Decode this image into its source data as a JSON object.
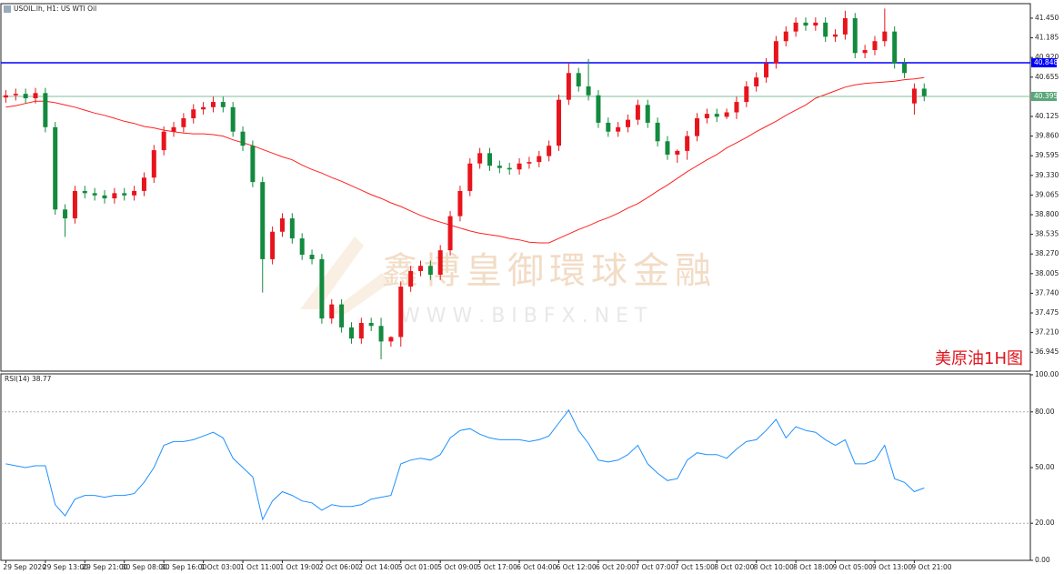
{
  "chart_data": [
    {
      "type": "candlestick",
      "title": "USOIL.lh, H1: US WTI Oil",
      "annotation": "美原油1H图",
      "watermark": "鑫博皇御環球金融",
      "watermark_url": "W W W . B I B F X . N E T",
      "up_color": "#e8141c",
      "down_color": "#138a3e",
      "xlim": [
        -1,
        207.5
      ],
      "ylim": [
        36.69,
        41.646
      ],
      "xticks": [
        {
          "value": 0,
          "label": "29 Sep 2020"
        },
        {
          "value": 8,
          "label": "29 Sep 13:00"
        },
        {
          "value": 16,
          "label": "29 Sep 21:00"
        },
        {
          "value": 24,
          "label": "30 Sep 08:00"
        },
        {
          "value": 32,
          "label": "30 Sep 16:00"
        },
        {
          "value": 40,
          "label": "1 Oct 03:00"
        },
        {
          "value": 48,
          "label": "1 Oct 11:00"
        },
        {
          "value": 56,
          "label": "1 Oct 19:00"
        },
        {
          "value": 64,
          "label": "2 Oct 06:00"
        },
        {
          "value": 72,
          "label": "2 Oct 14:00"
        },
        {
          "value": 80,
          "label": "5 Oct 01:00"
        },
        {
          "value": 88,
          "label": "5 Oct 09:00"
        },
        {
          "value": 96,
          "label": "5 Oct 17:00"
        },
        {
          "value": 104,
          "label": "6 Oct 04:00"
        },
        {
          "value": 112,
          "label": "6 Oct 12:00"
        },
        {
          "value": 120,
          "label": "6 Oct 20:00"
        },
        {
          "value": 128,
          "label": "7 Oct 07:00"
        },
        {
          "value": 136,
          "label": "7 Oct 15:00"
        },
        {
          "value": 144,
          "label": "8 Oct 02:00"
        },
        {
          "value": 152,
          "label": "8 Oct 10:00"
        },
        {
          "value": 160,
          "label": "8 Oct 18:00"
        },
        {
          "value": 168,
          "label": "9 Oct 05:00"
        },
        {
          "value": 176,
          "label": "9 Oct 13:00"
        },
        {
          "value": 184,
          "label": "9 Oct 21:00"
        }
      ],
      "yticks": [
        {
          "value": 41.45,
          "label": "41.450"
        },
        {
          "value": 41.185,
          "label": "41.185"
        },
        {
          "value": 40.92,
          "label": "40.920"
        },
        {
          "value": 40.655,
          "label": "40.655"
        },
        {
          "value": 40.125,
          "label": "40.125"
        },
        {
          "value": 39.86,
          "label": "39.860"
        },
        {
          "value": 39.595,
          "label": "39.595"
        },
        {
          "value": 39.33,
          "label": "39.330"
        },
        {
          "value": 39.065,
          "label": "39.065"
        },
        {
          "value": 38.8,
          "label": "38.800"
        },
        {
          "value": 38.535,
          "label": "38.535"
        },
        {
          "value": 38.27,
          "label": "38.270"
        },
        {
          "value": 38.005,
          "label": "38.005"
        },
        {
          "value": 37.74,
          "label": "37.740"
        },
        {
          "value": 37.475,
          "label": "37.475"
        },
        {
          "value": 37.21,
          "label": "37.210"
        },
        {
          "value": 36.945,
          "label": "36.945"
        }
      ],
      "hlines": [
        {
          "value": 40.848,
          "label": "40.848",
          "color": "#0000ff"
        },
        {
          "value": 40.395,
          "label": "40.395",
          "color": "#5aa77a"
        }
      ],
      "x": [
        0,
        2,
        4,
        6,
        8,
        10,
        12,
        14,
        16,
        18,
        20,
        22,
        24,
        26,
        28,
        30,
        32,
        34,
        36,
        38,
        40,
        42,
        44,
        46,
        48,
        50,
        52,
        54,
        56,
        58,
        60,
        62,
        64,
        66,
        68,
        70,
        72,
        74,
        76,
        78,
        80,
        82,
        84,
        86,
        88,
        90,
        92,
        94,
        96,
        98,
        100,
        102,
        104,
        106,
        108,
        110,
        112,
        114,
        116,
        118,
        120,
        122,
        124,
        126,
        128,
        130,
        132,
        134,
        136,
        138,
        140,
        142,
        144,
        146,
        148,
        150,
        152,
        154,
        156,
        158,
        160,
        162,
        164,
        166,
        168,
        170,
        172,
        174,
        176,
        178,
        180,
        182,
        184,
        186
      ],
      "open": [
        40.38,
        40.41,
        40.43,
        40.37,
        40.44,
        39.98,
        38.87,
        38.75,
        39.12,
        39.09,
        39.06,
        39.02,
        39.09,
        39.06,
        39.12,
        39.3,
        39.67,
        39.92,
        39.98,
        40.1,
        40.22,
        40.25,
        40.32,
        40.25,
        39.92,
        39.73,
        39.24,
        38.2,
        38.57,
        38.75,
        38.48,
        38.26,
        38.2,
        37.4,
        37.59,
        37.28,
        37.13,
        37.34,
        37.3,
        37.09,
        37.15,
        37.83,
        38.04,
        38.11,
        37.99,
        38.32,
        38.78,
        39.12,
        39.49,
        39.63,
        39.46,
        39.43,
        39.41,
        39.49,
        39.51,
        39.59,
        39.73,
        40.35,
        40.71,
        40.53,
        40.41,
        40.04,
        39.92,
        39.98,
        40.08,
        40.28,
        40.04,
        39.79,
        39.61,
        39.66,
        39.86,
        40.1,
        40.16,
        40.12,
        40.18,
        40.32,
        40.53,
        40.65,
        40.84,
        41.14,
        41.27,
        41.39,
        41.35,
        41.39,
        41.2,
        41.23,
        41.45,
        40.98,
        41.02,
        41.14,
        41.27,
        40.84,
        40.3,
        40.5
      ],
      "high": [
        40.48,
        40.5,
        40.5,
        40.51,
        40.51,
        40.05,
        38.94,
        39.19,
        39.19,
        39.16,
        39.13,
        39.16,
        39.16,
        39.19,
        39.37,
        39.74,
        39.99,
        40.05,
        40.17,
        40.29,
        40.32,
        40.39,
        40.39,
        40.32,
        39.99,
        39.8,
        39.31,
        38.64,
        38.82,
        38.82,
        38.55,
        38.33,
        38.27,
        37.66,
        37.66,
        37.35,
        37.41,
        37.41,
        37.41,
        37.16,
        37.9,
        38.11,
        38.18,
        38.18,
        38.39,
        38.85,
        39.19,
        39.56,
        39.7,
        39.7,
        39.53,
        39.5,
        39.56,
        39.58,
        39.66,
        39.8,
        40.42,
        40.85,
        40.78,
        40.9,
        40.48,
        40.11,
        40.05,
        40.15,
        40.35,
        40.35,
        40.11,
        39.86,
        39.68,
        39.93,
        40.17,
        40.23,
        40.23,
        40.23,
        40.39,
        40.6,
        40.72,
        40.91,
        41.21,
        41.34,
        41.46,
        41.46,
        41.46,
        41.46,
        41.3,
        41.55,
        41.52,
        41.09,
        41.21,
        41.58,
        41.34,
        40.91,
        40.57,
        40.57
      ],
      "low": [
        40.31,
        40.34,
        40.3,
        40.3,
        39.91,
        38.8,
        38.5,
        38.68,
        39.02,
        38.99,
        38.95,
        38.95,
        38.99,
        38.99,
        39.05,
        39.23,
        39.6,
        39.85,
        39.91,
        40.03,
        40.15,
        40.18,
        40.18,
        39.85,
        39.66,
        39.17,
        37.75,
        38.13,
        38.5,
        38.41,
        38.19,
        38.13,
        37.33,
        37.33,
        37.21,
        37.06,
        37.06,
        37.23,
        36.85,
        37.02,
        37.02,
        37.76,
        37.97,
        37.92,
        37.92,
        38.25,
        38.71,
        39.05,
        39.42,
        39.39,
        39.36,
        39.34,
        39.34,
        39.42,
        39.44,
        39.52,
        39.66,
        40.28,
        40.46,
        40.34,
        39.97,
        39.85,
        39.85,
        39.91,
        40.01,
        39.97,
        39.72,
        39.54,
        39.5,
        39.54,
        39.79,
        40.03,
        40.05,
        40.09,
        40.09,
        40.25,
        40.46,
        40.58,
        40.77,
        41.07,
        41.2,
        41.28,
        41.28,
        41.13,
        41.13,
        41.16,
        40.91,
        40.91,
        40.95,
        41.07,
        40.77,
        40.64,
        40.15,
        40.33
      ],
      "close": [
        40.41,
        40.43,
        40.37,
        40.44,
        39.98,
        38.87,
        38.75,
        39.12,
        39.09,
        39.06,
        39.02,
        39.09,
        39.06,
        39.12,
        39.3,
        39.67,
        39.92,
        39.98,
        40.1,
        40.22,
        40.25,
        40.32,
        40.25,
        39.92,
        39.73,
        39.24,
        38.2,
        38.57,
        38.75,
        38.48,
        38.26,
        38.2,
        37.4,
        37.59,
        37.28,
        37.13,
        37.34,
        37.3,
        37.09,
        37.15,
        37.83,
        38.04,
        38.11,
        37.99,
        38.32,
        38.78,
        39.12,
        39.49,
        39.63,
        39.46,
        39.43,
        39.41,
        39.49,
        39.51,
        39.59,
        39.73,
        40.35,
        40.71,
        40.53,
        40.41,
        40.04,
        39.92,
        39.98,
        40.08,
        40.28,
        40.04,
        39.79,
        39.61,
        39.66,
        39.86,
        40.1,
        40.16,
        40.12,
        40.18,
        40.32,
        40.53,
        40.65,
        40.84,
        41.14,
        41.27,
        41.39,
        41.35,
        41.39,
        41.2,
        41.23,
        41.45,
        40.98,
        41.02,
        41.14,
        41.27,
        40.84,
        40.71,
        40.5,
        40.4
      ],
      "ma": {
        "color": "#ff2020",
        "values": [
          40.25,
          40.27,
          40.3,
          40.33,
          40.33,
          40.31,
          40.28,
          40.25,
          40.21,
          40.17,
          40.14,
          40.1,
          40.06,
          40.03,
          39.99,
          39.97,
          39.94,
          39.92,
          39.9,
          39.89,
          39.89,
          39.88,
          39.86,
          39.81,
          39.77,
          39.73,
          39.68,
          39.63,
          39.58,
          39.54,
          39.47,
          39.41,
          39.36,
          39.3,
          39.25,
          39.19,
          39.13,
          39.07,
          39.02,
          38.96,
          38.91,
          38.85,
          38.79,
          38.74,
          38.7,
          38.66,
          38.62,
          38.58,
          38.55,
          38.53,
          38.51,
          38.48,
          38.46,
          38.43,
          38.42,
          38.42,
          38.48,
          38.54,
          38.6,
          38.65,
          38.71,
          38.76,
          38.82,
          38.89,
          38.95,
          39.03,
          39.12,
          39.2,
          39.29,
          39.38,
          39.46,
          39.54,
          39.61,
          39.7,
          39.77,
          39.84,
          39.92,
          39.99,
          40.06,
          40.14,
          40.21,
          40.28,
          40.37,
          40.42,
          40.47,
          40.52,
          40.55,
          40.57,
          40.58,
          40.59,
          40.6,
          40.62,
          40.63,
          40.65
        ]
      }
    },
    {
      "type": "line",
      "title": "RSI(14) 38.77",
      "color": "#1e90ff",
      "ylim": [
        0,
        100
      ],
      "yticks": [
        {
          "value": 100,
          "label": "100.00"
        },
        {
          "value": 80,
          "label": "80.00"
        },
        {
          "value": 50,
          "label": "50.00"
        },
        {
          "value": 20,
          "label": "20.00"
        },
        {
          "value": 0,
          "label": "0.00"
        }
      ],
      "levels": [
        80,
        20
      ],
      "values": [
        52,
        51,
        50,
        51,
        51,
        30,
        24,
        33,
        35,
        35,
        34,
        35,
        35,
        36,
        42,
        50,
        62,
        64,
        64,
        65,
        67,
        69,
        66,
        55,
        50,
        45,
        22,
        32,
        37,
        35,
        32,
        31,
        27,
        30,
        29,
        29,
        30,
        33,
        34,
        35,
        52,
        54,
        55,
        54,
        57,
        66,
        70,
        71,
        68,
        66,
        65,
        65,
        65,
        64,
        65,
        67,
        74,
        81,
        70,
        63,
        54,
        53,
        54,
        57,
        62,
        52,
        47,
        43,
        44,
        54,
        58,
        57,
        57,
        55,
        60,
        64,
        65,
        70,
        76,
        66,
        72,
        70,
        69,
        65,
        62,
        65,
        52,
        52,
        54,
        62,
        44,
        42,
        37,
        39
      ]
    }
  ]
}
